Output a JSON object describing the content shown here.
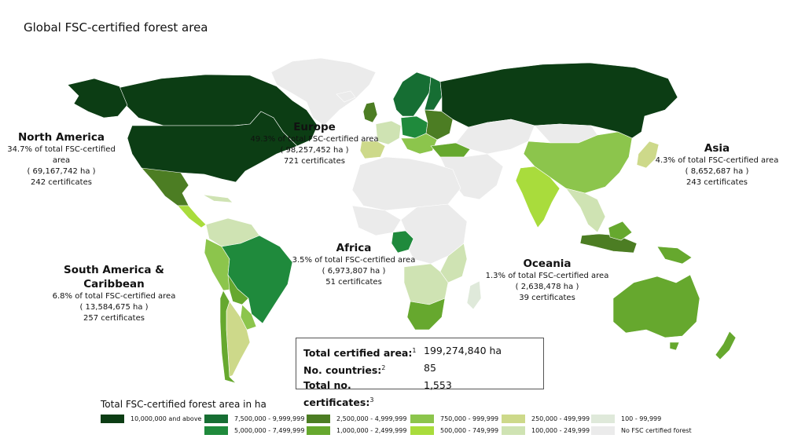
{
  "title": "Global FSC-certified forest area",
  "regions": [
    {
      "id": "north-america",
      "name": "North America",
      "share": "34.7% of total FSC-certified area",
      "area": "( 69,167,742 ha )",
      "certs": "242 certificates"
    },
    {
      "id": "europe",
      "name": "Europe",
      "share": "49.3% of total FSC-certified area",
      "area": "( 98,257,452 ha )",
      "certs": "721 certificates"
    },
    {
      "id": "asia",
      "name": "Asia",
      "share": "4.3% of total FSC-certified area",
      "area": "( 8,652,687 ha )",
      "certs": "243 certificates"
    },
    {
      "id": "south-america",
      "name": "South America & Caribbean",
      "share": "6.8% of total FSC-certified area",
      "area": "( 13,584,675 ha )",
      "certs": "257 certificates"
    },
    {
      "id": "africa",
      "name": "Africa",
      "share": "3.5% of total FSC-certified area",
      "area": "( 6,973,807 ha )",
      "certs": "51 certificates"
    },
    {
      "id": "oceania",
      "name": "Oceania",
      "share": "1.3% of total FSC-certified area",
      "area": "( 2,638,478 ha )",
      "certs": "39 certificates"
    }
  ],
  "summary": {
    "area_label": "Total certified area:",
    "area_note": "1",
    "area_value": "199,274,840 ha",
    "countries_label": "No. countries:",
    "countries_note": "2",
    "countries_value": "85",
    "certs_label": "Total no. certificates:",
    "certs_note": "3",
    "certs_value": "1,553"
  },
  "legend": {
    "title": "Total FSC-certified forest area in ha",
    "items": [
      {
        "label": "10,000,000 and above",
        "color": "#0c3d14"
      },
      {
        "label": "7,500,000 - 9,999,999",
        "color": "#166e33"
      },
      {
        "label": "5,000,000 - 7,499,999",
        "color": "#1f8a3c"
      },
      {
        "label": "2,500,000 - 4,999,999",
        "color": "#4c7d23"
      },
      {
        "label": "1,000,000 - 2,499,999",
        "color": "#66a82e"
      },
      {
        "label": "750,000 - 999,999",
        "color": "#8cc54c"
      },
      {
        "label": "500,000 - 749,999",
        "color": "#a9dc3c"
      },
      {
        "label": "250,000 - 499,999",
        "color": "#cdd98a"
      },
      {
        "label": "100,000 - 249,999",
        "color": "#cfe3b3"
      },
      {
        "label": "100 - 99,999",
        "color": "#dfe9da"
      },
      {
        "label": "No FSC certified forest",
        "color": "#ebebeb"
      }
    ]
  }
}
